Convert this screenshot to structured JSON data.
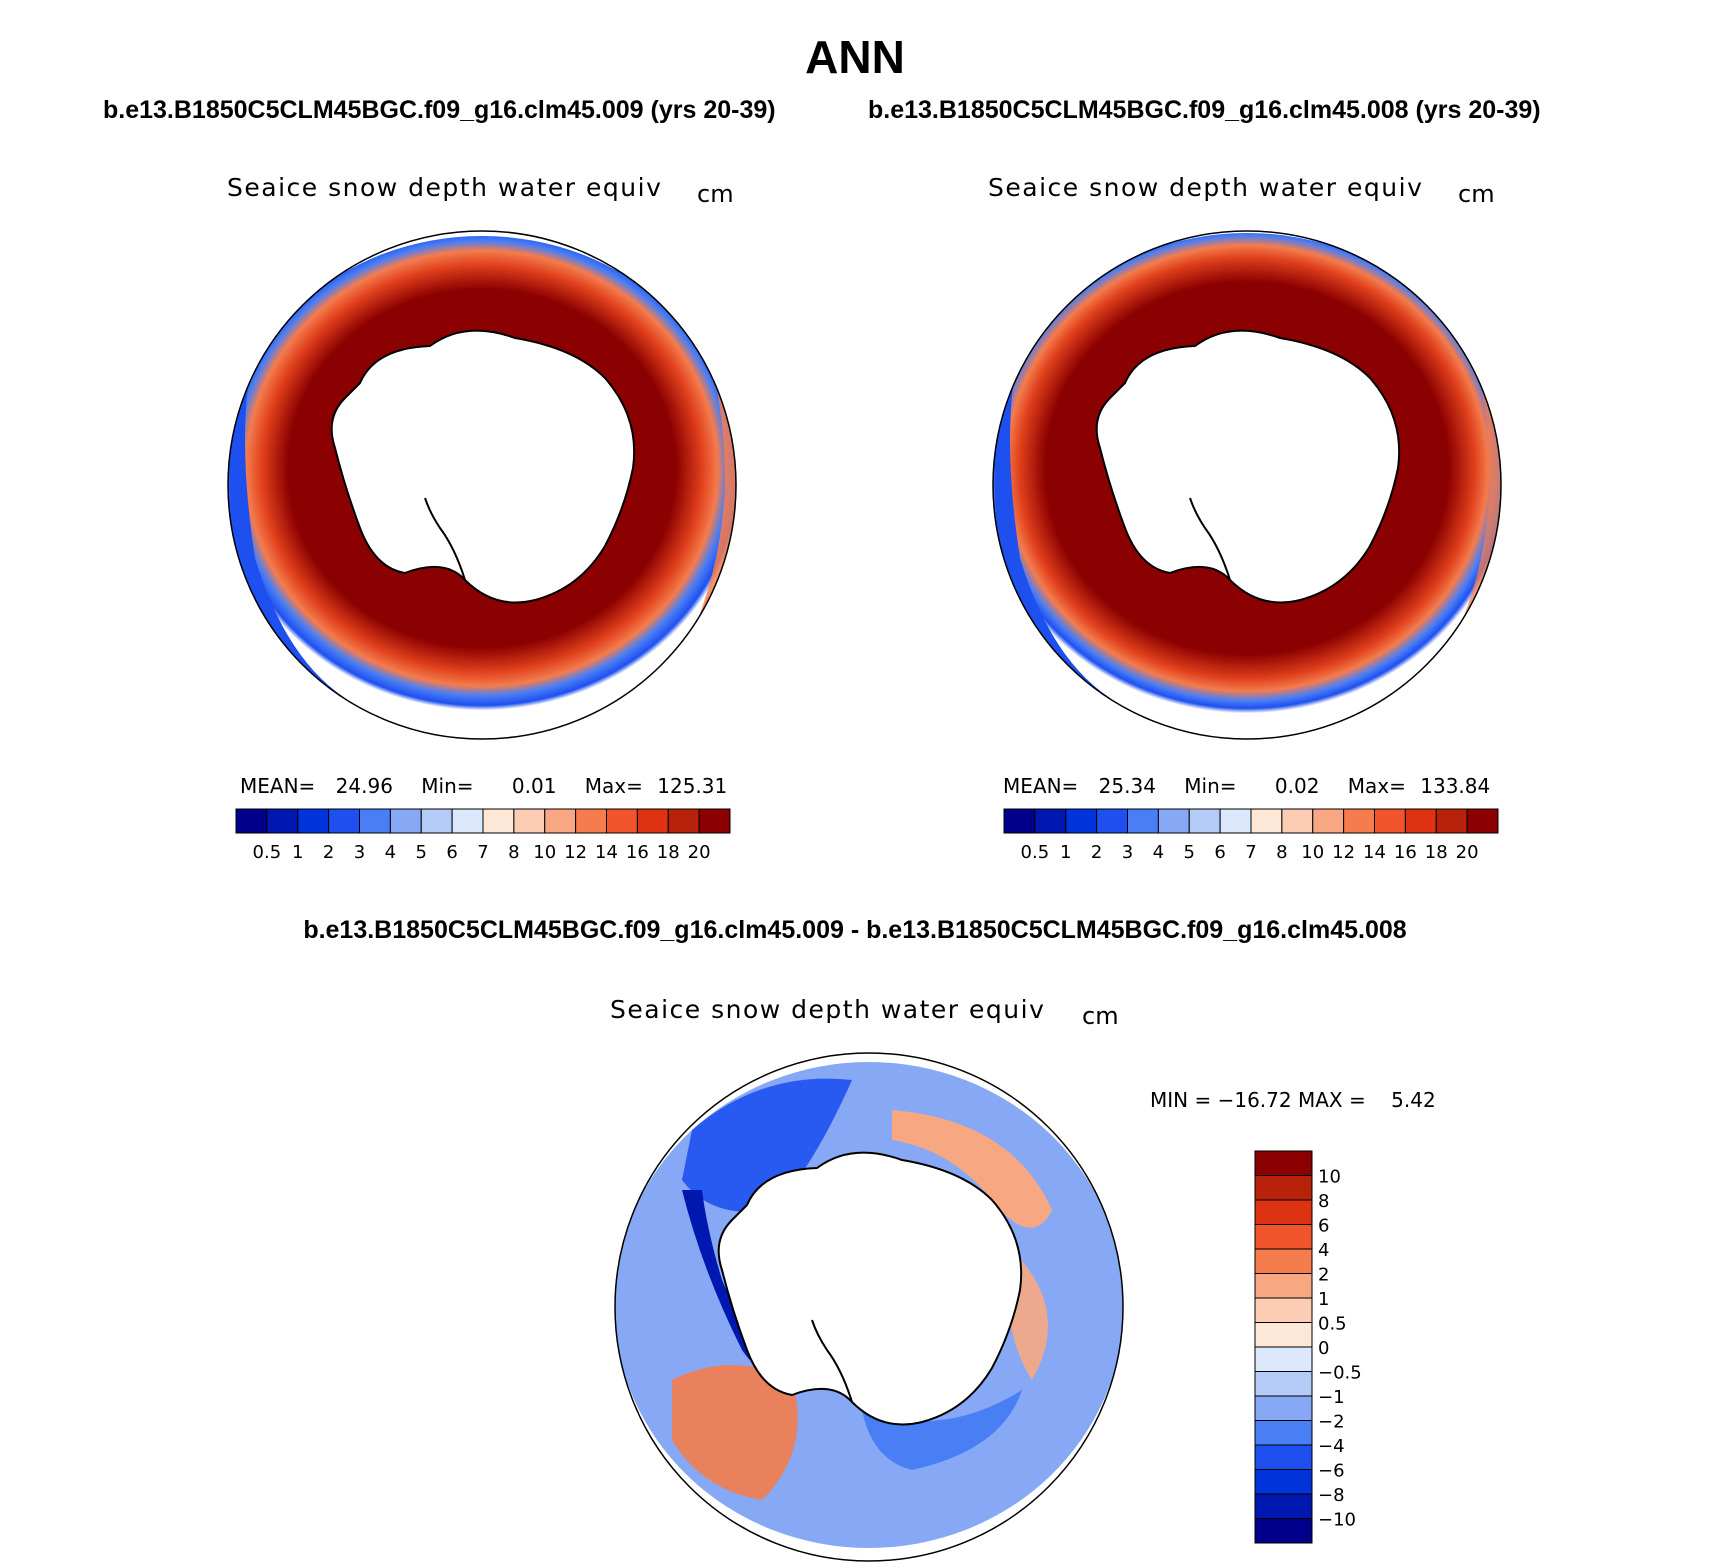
{
  "header": {
    "title": "ANN",
    "case_left": "b.e13.B1850C5CLM45BGC.f09_g16.clm45.009 (yrs 20-39)",
    "case_right": "b.e13.B1850C5CLM45BGC.f09_g16.clm45.008 (yrs 20-39)",
    "diff_title": "b.e13.B1850C5CLM45BGC.f09_g16.clm45.009 - b.e13.B1850C5CLM45BGC.f09_g16.clm45.008"
  },
  "panels": {
    "left": {
      "variable": "Seaice snow depth water equiv",
      "units": "cm",
      "mean_label": "MEAN=",
      "mean": "24.96",
      "min_label": "Min=",
      "min": "0.01",
      "max_label": "Max=",
      "max": "125.31"
    },
    "right": {
      "variable": "Seaice snow depth water equiv",
      "units": "cm",
      "mean_label": "MEAN=",
      "mean": "25.34",
      "min_label": "Min=",
      "min": "0.02",
      "max_label": "Max=",
      "max": "133.84"
    },
    "diff": {
      "variable": "Seaice snow depth water equiv",
      "units": "cm",
      "minmax": "MIN = −16.72 MAX =    5.42"
    }
  },
  "colorbars": {
    "model": {
      "colors": [
        "#00008a",
        "#0018b0",
        "#0033d9",
        "#1e50f0",
        "#4a7ef5",
        "#86a8f5",
        "#b5cbf7",
        "#dce8fb",
        "#fde8d8",
        "#fccdb4",
        "#f7a883",
        "#f47c4d",
        "#f0552c",
        "#dd3312",
        "#b8220a",
        "#8b0000"
      ],
      "labels": [
        "0.5",
        "1",
        "2",
        "3",
        "4",
        "5",
        "6",
        "7",
        "8",
        "10",
        "12",
        "14",
        "16",
        "18",
        "20"
      ]
    },
    "diff": {
      "colors": [
        "#8b0000",
        "#b8220a",
        "#dd3312",
        "#f0552c",
        "#f47c4d",
        "#f7a883",
        "#fccdb4",
        "#fde8d8",
        "#dce8fb",
        "#b5cbf7",
        "#86a8f5",
        "#4a7ef5",
        "#1e50f0",
        "#0033d9",
        "#0018b0",
        "#00008a"
      ],
      "labels": [
        "10",
        "8",
        "6",
        "4",
        "2",
        "1",
        "0.5",
        "0",
        "−0.5",
        "−1",
        "−2",
        "−4",
        "−6",
        "−8",
        "−10"
      ]
    }
  },
  "chart_data": [
    {
      "type": "heatmap",
      "title": "Seaice snow depth water equiv",
      "subtitle": "b.e13.B1850C5CLM45BGC.f09_g16.clm45.009 (yrs 20-39)",
      "units": "cm",
      "projection": "south polar stereographic",
      "mean": 24.96,
      "min": 0.01,
      "max": 125.31,
      "levels": [
        0.5,
        1,
        2,
        3,
        4,
        5,
        6,
        7,
        8,
        10,
        12,
        14,
        16,
        18,
        20
      ]
    },
    {
      "type": "heatmap",
      "title": "Seaice snow depth water equiv",
      "subtitle": "b.e13.B1850C5CLM45BGC.f09_g16.clm45.008 (yrs 20-39)",
      "units": "cm",
      "projection": "south polar stereographic",
      "mean": 25.34,
      "min": 0.02,
      "max": 133.84,
      "levels": [
        0.5,
        1,
        2,
        3,
        4,
        5,
        6,
        7,
        8,
        10,
        12,
        14,
        16,
        18,
        20
      ]
    },
    {
      "type": "heatmap",
      "title": "Seaice snow depth water equiv",
      "subtitle": "b.e13.B1850C5CLM45BGC.f09_g16.clm45.009 - b.e13.B1850C5CLM45BGC.f09_g16.clm45.008",
      "units": "cm",
      "projection": "south polar stereographic",
      "min": -16.72,
      "max": 5.42,
      "levels": [
        -10,
        -8,
        -6,
        -4,
        -2,
        -1,
        -0.5,
        0,
        0.5,
        1,
        2,
        4,
        6,
        8,
        10
      ]
    }
  ]
}
